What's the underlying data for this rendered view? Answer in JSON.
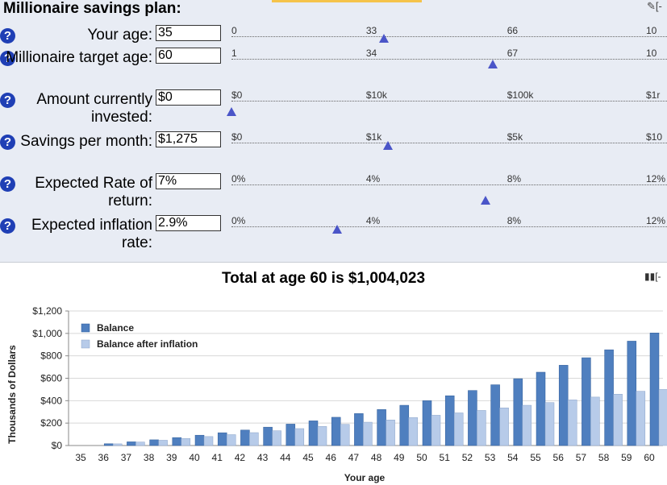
{
  "panel": {
    "title": "Millionaire savings plan:",
    "edit_icon": "pencil-icon",
    "edit_text": "[-"
  },
  "inputs": [
    {
      "label": "Your age:",
      "value": "35",
      "ticks": [
        "0",
        "33",
        "66",
        "10"
      ],
      "level": 0.35
    },
    {
      "label": "Millionaire target age:",
      "value": "60",
      "ticks": [
        "1",
        "34",
        "67",
        "10"
      ],
      "level": 0.6
    },
    {
      "label": "Amount currently invested:",
      "value": "$0",
      "ticks": [
        "$0",
        "$10k",
        "$100k",
        "$1r"
      ],
      "level": 0.0
    },
    {
      "label": "Savings per month:",
      "value": "$1,275",
      "ticks": [
        "$0",
        "$1k",
        "$5k",
        "$10"
      ],
      "level": 0.36
    },
    {
      "label": "Expected Rate of return:",
      "value": "7%",
      "ticks": [
        "0%",
        "4%",
        "8%",
        "12%"
      ],
      "level": 0.583
    },
    {
      "label": "Expected inflation rate:",
      "value": "2.9%",
      "ticks": [
        "0%",
        "4%",
        "8%",
        "12%"
      ],
      "level": 0.242
    }
  ],
  "summary": {
    "text": "Total at age 60 is $1,004,023",
    "chart_toggle": "[-"
  },
  "colors": {
    "balance": "#4f7fbf",
    "after_inflation": "#b7cbe9",
    "thumb": "#4a55c8",
    "help": "#1f3fb5"
  },
  "chart_data": {
    "type": "bar",
    "xlabel": "Your age",
    "ylabel": "Thousands of Dollars",
    "ylim": [
      0,
      1200
    ],
    "yticks": [
      "$0",
      "$200",
      "$400",
      "$600",
      "$800",
      "$1,000",
      "$1,200"
    ],
    "categories": [
      "35",
      "36",
      "37",
      "38",
      "39",
      "40",
      "41",
      "42",
      "43",
      "44",
      "45",
      "46",
      "47",
      "48",
      "49",
      "50",
      "51",
      "52",
      "53",
      "54",
      "55",
      "56",
      "57",
      "58",
      "59",
      "60"
    ],
    "legend_position": "top-left",
    "grid": true,
    "series": [
      {
        "name": "Balance",
        "values": [
          0,
          16,
          33,
          51,
          71,
          92,
          114,
          138,
          164,
          191,
          220,
          252,
          285,
          321,
          359,
          400,
          444,
          491,
          542,
          596,
          654,
          716,
          783,
          854,
          931,
          1004
        ]
      },
      {
        "name": "Balance after inflation",
        "values": [
          0,
          15,
          31,
          47,
          63,
          80,
          97,
          115,
          132,
          151,
          170,
          189,
          208,
          228,
          249,
          270,
          291,
          313,
          336,
          359,
          383,
          407,
          432,
          458,
          484,
          500
        ]
      }
    ]
  }
}
